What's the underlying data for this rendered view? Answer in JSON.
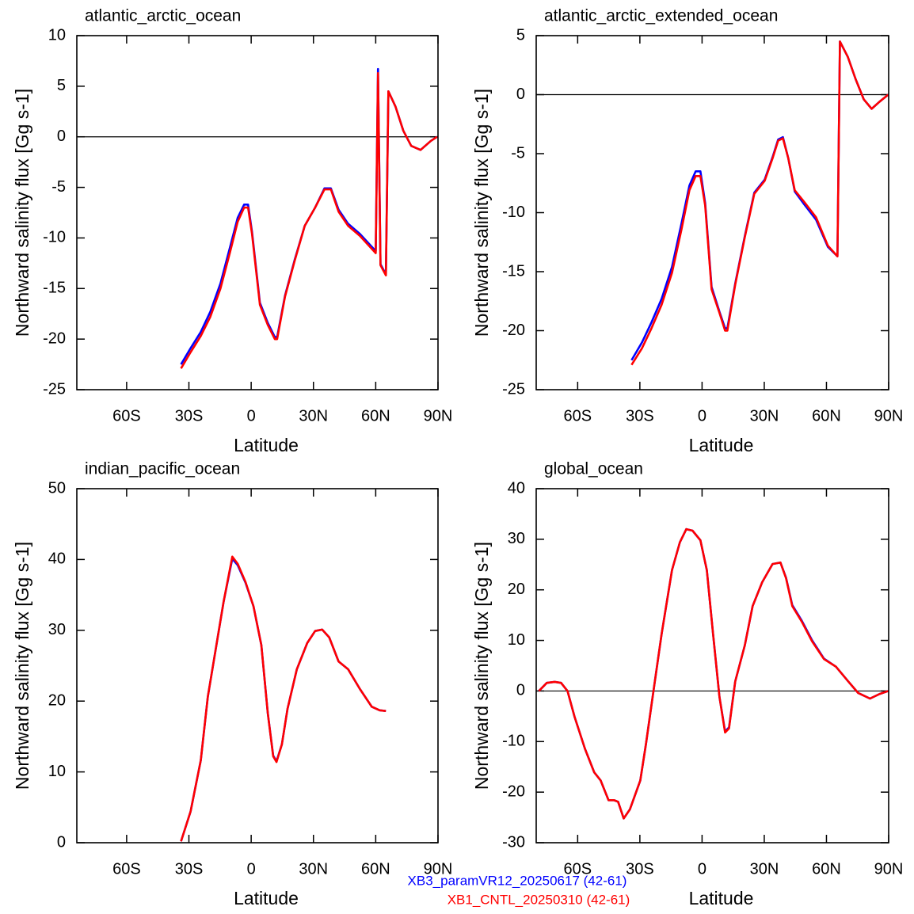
{
  "chart_data": [
    {
      "type": "line",
      "title": "atlantic_arctic_ocean",
      "xlabel": "Latitude",
      "ylabel": "Northward salinity flux [Gg s-1]",
      "xlim": [
        -84,
        90
      ],
      "xticks": [
        {
          "value": -60,
          "label": "60S"
        },
        {
          "value": -30,
          "label": "30S"
        },
        0,
        {
          "value": 30,
          "label": "30N"
        },
        {
          "value": 60,
          "label": "60N"
        },
        {
          "value": 90,
          "label": "90N"
        }
      ],
      "ylim": [
        -25,
        10
      ],
      "yticks": [
        -25,
        -20,
        -15,
        -10,
        -5,
        0,
        5,
        10
      ],
      "zero_line": true,
      "x": [
        -33.8,
        -29.2,
        -24.3,
        -19.7,
        -14.8,
        -10.3,
        -6.5,
        -3.4,
        -1.5,
        0.4,
        4.2,
        8,
        11.4,
        12.5,
        16.3,
        20.9,
        25.8,
        30.8,
        35.3,
        38.4,
        42.1,
        46.7,
        52.4,
        60,
        61.1,
        62.3,
        64.9,
        66.1,
        69.5,
        73.3,
        77.1,
        81.6,
        86.6,
        89.6
      ],
      "series": [
        {
          "name": "XB3_paramVR12_20250617 (42-61)",
          "color": "#0000ff",
          "values": [
            -22.5,
            -20.9,
            -19.3,
            -17.3,
            -14.5,
            -11.0,
            -8.0,
            -6.7,
            -6.7,
            -9.4,
            -16.4,
            -18.4,
            -19.8,
            -19.8,
            -15.7,
            -12.2,
            -8.8,
            -7.0,
            -5.1,
            -5.1,
            -7.2,
            -8.6,
            -9.6,
            -11.3,
            6.7,
            -12.6,
            -13.6,
            4.5,
            3.0,
            0.6,
            -0.9,
            -1.3,
            -0.4,
            0
          ]
        },
        {
          "name": "XB1_CNTL_20250310 (42-61)",
          "color": "#ff0000",
          "values": [
            -22.9,
            -21.3,
            -19.7,
            -17.8,
            -15.0,
            -11.5,
            -8.4,
            -7.0,
            -7.0,
            -9.6,
            -16.6,
            -18.6,
            -20.0,
            -20.0,
            -15.8,
            -12.3,
            -8.8,
            -7.0,
            -5.2,
            -5.2,
            -7.4,
            -8.8,
            -9.8,
            -11.5,
            6.3,
            -12.7,
            -13.7,
            4.5,
            3.0,
            0.6,
            -0.9,
            -1.3,
            -0.4,
            0
          ]
        }
      ]
    },
    {
      "type": "line",
      "title": "atlantic_arctic_extended_ocean",
      "xlabel": "Latitude",
      "ylabel": "Northward salinity flux [Gg s-1]",
      "xlim": [
        -80,
        90
      ],
      "xticks": [
        {
          "value": -60,
          "label": "60S"
        },
        {
          "value": -30,
          "label": "30S"
        },
        0,
        {
          "value": 30,
          "label": "30N"
        },
        {
          "value": 60,
          "label": "60N"
        },
        {
          "value": 90,
          "label": "90N"
        }
      ],
      "ylim": [
        -25,
        5
      ],
      "yticks": [
        -25,
        -20,
        -15,
        -10,
        -5,
        0,
        5
      ],
      "zero_line": true,
      "x": [
        -34,
        -29,
        -24.4,
        -19.5,
        -14.5,
        -9.9,
        -6.1,
        -3.1,
        -0.8,
        1.5,
        4.6,
        8.4,
        11.1,
        12.2,
        16,
        20.6,
        25.2,
        30.2,
        34,
        36.7,
        39,
        41.6,
        44.7,
        49.3,
        55,
        60.7,
        65.3,
        66.5,
        70.3,
        74.1,
        78,
        81.8,
        85.6,
        89.8
      ],
      "series": [
        {
          "name": "XB3_paramVR12_20250617 (42-61)",
          "color": "#0000ff",
          "values": [
            -22.5,
            -21.0,
            -19.3,
            -17.3,
            -14.6,
            -10.9,
            -7.7,
            -6.5,
            -6.5,
            -9.2,
            -16.3,
            -18.4,
            -19.8,
            -19.8,
            -16.0,
            -12.0,
            -8.3,
            -7.2,
            -5.3,
            -3.8,
            -3.6,
            -5.4,
            -8.2,
            -9.3,
            -10.6,
            -12.9,
            -13.7,
            4.5,
            3.2,
            1.3,
            -0.4,
            -1.2,
            -0.6,
            0
          ]
        },
        {
          "name": "XB1_CNTL_20250310 (42-61)",
          "color": "#ff0000",
          "values": [
            -22.9,
            -21.5,
            -19.8,
            -17.8,
            -15.1,
            -11.4,
            -8.1,
            -6.9,
            -6.9,
            -9.4,
            -16.5,
            -18.5,
            -20.0,
            -20.0,
            -16.1,
            -12.1,
            -8.4,
            -7.3,
            -5.4,
            -3.9,
            -3.7,
            -5.4,
            -8.1,
            -9.1,
            -10.4,
            -12.8,
            -13.7,
            4.5,
            3.2,
            1.3,
            -0.4,
            -1.2,
            -0.6,
            0
          ]
        }
      ]
    },
    {
      "type": "line",
      "title": "indian_pacific_ocean",
      "xlabel": "Latitude",
      "ylabel": "Northward salinity flux [Gg s-1]",
      "xlim": [
        -84,
        90
      ],
      "xticks": [
        {
          "value": -60,
          "label": "60S"
        },
        {
          "value": -30,
          "label": "30S"
        },
        0,
        {
          "value": 30,
          "label": "30N"
        },
        {
          "value": 60,
          "label": "60N"
        },
        {
          "value": 90,
          "label": "90N"
        }
      ],
      "ylim": [
        0,
        50
      ],
      "yticks": [
        0,
        10,
        20,
        30,
        40,
        50
      ],
      "zero_line": false,
      "x": [
        -33.8,
        -29.2,
        -27.3,
        -24.3,
        -20.9,
        -17.1,
        -13.3,
        -9.1,
        -6.5,
        -2.7,
        1.1,
        4.9,
        8,
        10.6,
        12.2,
        14.8,
        17.5,
        22,
        27,
        30.8,
        34.2,
        37.6,
        42.1,
        46.7,
        52.4,
        58.1,
        61.9,
        64.9
      ],
      "series": [
        {
          "name": "XB3_paramVR12_20250617 (42-61)",
          "color": "#0000ff",
          "values": [
            0.2,
            4.4,
            7.2,
            11.6,
            20.6,
            27.3,
            34.0,
            40.1,
            39.2,
            36.7,
            33.4,
            27.9,
            18.3,
            12.3,
            11.5,
            13.9,
            18.9,
            24.5,
            28.2,
            29.9,
            30.1,
            29.0,
            25.6,
            24.5,
            21.7,
            19.2,
            18.7,
            18.6
          ]
        },
        {
          "name": "XB1_CNTL_20250310 (42-61)",
          "color": "#ff0000",
          "values": [
            0.2,
            4.4,
            7.2,
            11.6,
            20.6,
            27.3,
            34.0,
            40.4,
            39.4,
            36.8,
            33.4,
            27.9,
            18.3,
            12.2,
            11.4,
            13.9,
            18.9,
            24.5,
            28.2,
            29.9,
            30.1,
            29.0,
            25.6,
            24.5,
            21.7,
            19.2,
            18.7,
            18.6
          ]
        }
      ]
    },
    {
      "type": "line",
      "title": "global_ocean",
      "xlabel": "Latitude",
      "ylabel": "Northward salinity flux [Gg s-1]",
      "xlim": [
        -80,
        90
      ],
      "xticks": [
        {
          "value": -60,
          "label": "60S"
        },
        {
          "value": -30,
          "label": "30S"
        },
        0,
        {
          "value": 30,
          "label": "30N"
        },
        {
          "value": 60,
          "label": "60N"
        },
        {
          "value": 90,
          "label": "90N"
        }
      ],
      "ylim": [
        -30,
        40
      ],
      "yticks": [
        -30,
        -20,
        -10,
        0,
        10,
        20,
        30,
        40
      ],
      "zero_line": true,
      "x": [
        -78.7,
        -74.9,
        -71.1,
        -68,
        -64.9,
        -61.5,
        -56.5,
        -52,
        -48.9,
        -45.1,
        -42.4,
        -40.5,
        -37.8,
        -34.8,
        -29.8,
        -27.1,
        -23.3,
        -19.5,
        -14.5,
        -10.7,
        -7.6,
        -4.6,
        -0.8,
        2.3,
        5.3,
        8.4,
        11.1,
        13,
        16,
        20.6,
        24.4,
        29,
        34,
        37.8,
        40.5,
        43.5,
        48.1,
        53.1,
        58.8,
        64.6,
        70.3,
        75.3,
        81,
        85.6,
        89.8
      ],
      "series": [
        {
          "name": "XB3_paramVR12_20250617 (42-61)",
          "color": "#0000ff",
          "values": [
            0,
            1.6,
            1.8,
            1.6,
            0,
            -5.1,
            -11.4,
            -16.1,
            -17.7,
            -21.6,
            -21.6,
            -21.9,
            -25.2,
            -23.4,
            -17.7,
            -10.6,
            0.4,
            11.3,
            23.9,
            29.4,
            32.0,
            31.7,
            29.8,
            23.9,
            11.3,
            -1.2,
            -8.0,
            -7.2,
            1.9,
            9.0,
            16.8,
            21.5,
            25.1,
            25.4,
            22.4,
            17.0,
            13.9,
            10.0,
            6.4,
            4.8,
            2.0,
            -0.4,
            -1.5,
            -0.6,
            0
          ]
        },
        {
          "name": "XB1_CNTL_20250310 (42-61)",
          "color": "#ff0000",
          "values": [
            0,
            1.6,
            1.8,
            1.6,
            0,
            -5.1,
            -11.4,
            -16.1,
            -17.7,
            -21.6,
            -21.6,
            -21.9,
            -25.2,
            -23.4,
            -17.7,
            -10.6,
            0.4,
            11.3,
            23.9,
            29.4,
            32.0,
            31.7,
            29.8,
            23.9,
            11.3,
            -1.2,
            -8.2,
            -7.4,
            1.9,
            9.0,
            16.8,
            21.5,
            25.1,
            25.4,
            22.3,
            16.8,
            13.7,
            9.8,
            6.3,
            4.8,
            2.0,
            -0.4,
            -1.5,
            -0.6,
            0
          ]
        }
      ]
    }
  ]
}
